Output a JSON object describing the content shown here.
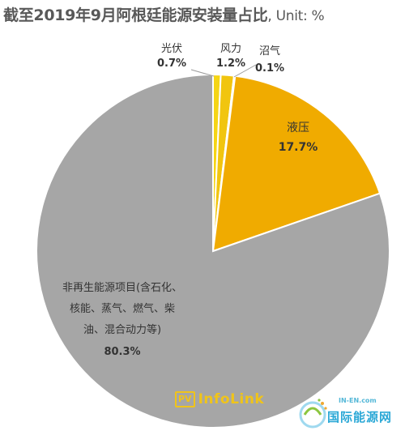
{
  "title": {
    "main": "截至2019年9月阿根廷能源安装量占比",
    "unit": ", Unit: %"
  },
  "chart_data": {
    "type": "pie",
    "title": "截至2019年9月阿根廷能源安装量占比",
    "unit": "%",
    "slices": [
      {
        "name": "光伏",
        "value": 0.7,
        "label": "0.7%",
        "color": "#f5d515"
      },
      {
        "name": "风力",
        "value": 1.2,
        "label": "1.2%",
        "color": "#f1c50f"
      },
      {
        "name": "沼气",
        "value": 0.1,
        "label": "0.1%",
        "color": "#ffd966"
      },
      {
        "name": "液压",
        "value": 17.7,
        "label": "17.7%",
        "color": "#f0ab00"
      },
      {
        "name": "非再生能源项目(含石化、核能、蒸气、燃气、柴油、混合动力等)",
        "value": 80.3,
        "label": "80.3%",
        "color": "#a6a6a6"
      }
    ],
    "labels": {
      "solar": {
        "name": "光伏",
        "value": "0.7%"
      },
      "wind": {
        "name": "风力",
        "value": "1.2%"
      },
      "biogas": {
        "name": "沼气",
        "value": "0.1%"
      },
      "hydro": {
        "name": "液压",
        "value": "17.7%"
      },
      "nonrenewable": {
        "lines": [
          "非再生能源项目(含石化、",
          "核能、蒸气、燃气、柴",
          "油、混合动力等)"
        ],
        "value": "80.3%"
      }
    }
  },
  "logo": {
    "box": "PV",
    "text": "InfoLink"
  },
  "watermark": {
    "url": "IN-EN.com",
    "name": "国际能源网"
  }
}
